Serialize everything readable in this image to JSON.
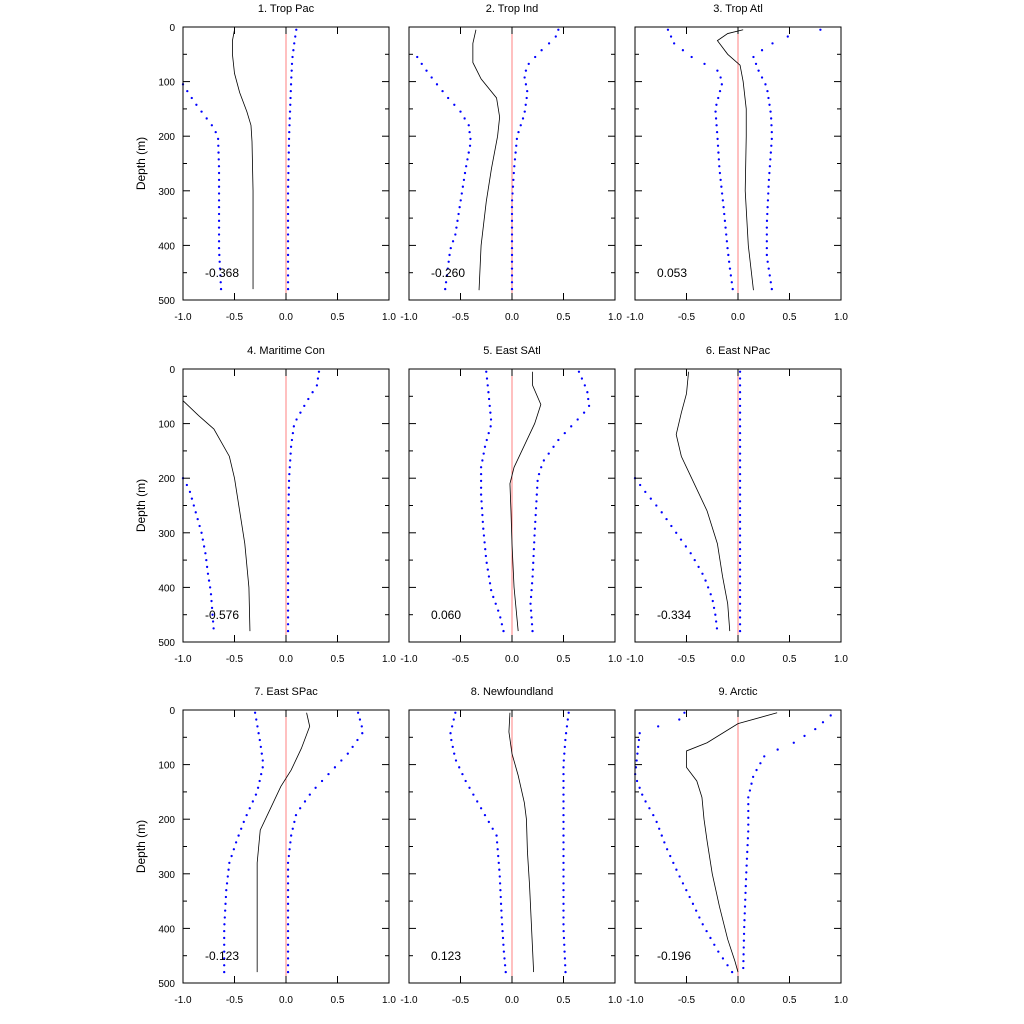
{
  "chart_data": {
    "type": "line",
    "layout": "3x3 grid of vertical profile panels",
    "ylabel": "Depth (m)",
    "xlim": [
      -1.0,
      1.0
    ],
    "ylim": [
      0,
      500
    ],
    "y_inverted": true,
    "xticks": [
      "-1.0",
      "-0.5",
      "0.0",
      "0.5",
      "1.0"
    ],
    "yticks": [
      "0",
      "100",
      "200",
      "300",
      "400",
      "500"
    ],
    "series_styles": {
      "mean": {
        "style": "solid",
        "color": "#000000"
      },
      "lower_bound": {
        "style": "dotted",
        "color": "#0000ff"
      },
      "upper_bound": {
        "style": "dotted",
        "color": "#0000ff"
      },
      "zero_line": {
        "style": "solid",
        "color": "#ff8080"
      }
    },
    "panels": [
      {
        "title": "1. Trop Pac",
        "label": "-0.368",
        "mean": [
          [
            -0.5,
            5
          ],
          [
            -0.52,
            25
          ],
          [
            -0.52,
            50
          ],
          [
            -0.5,
            85
          ],
          [
            -0.45,
            120
          ],
          [
            -0.38,
            155
          ],
          [
            -0.34,
            180
          ],
          [
            -0.33,
            210
          ],
          [
            -0.32,
            300
          ],
          [
            -0.32,
            400
          ],
          [
            -0.32,
            480
          ]
        ],
        "lower": [
          [
            -1.0,
            105
          ],
          [
            -0.95,
            120
          ],
          [
            -0.88,
            140
          ],
          [
            -0.8,
            160
          ],
          [
            -0.72,
            180
          ],
          [
            -0.66,
            200
          ],
          [
            -0.65,
            260
          ],
          [
            -0.65,
            300
          ],
          [
            -0.65,
            350
          ],
          [
            -0.65,
            408
          ],
          [
            -0.63,
            482
          ]
        ],
        "upper": [
          [
            0.1,
            5
          ],
          [
            0.08,
            30
          ],
          [
            0.06,
            60
          ],
          [
            0.05,
            100
          ],
          [
            0.04,
            150
          ],
          [
            0.03,
            200
          ],
          [
            0.02,
            300
          ],
          [
            0.02,
            400
          ],
          [
            0.02,
            482
          ]
        ]
      },
      {
        "title": "2. Trop Ind",
        "label": "-0.260",
        "mean": [
          [
            -0.35,
            5
          ],
          [
            -0.38,
            30
          ],
          [
            -0.38,
            65
          ],
          [
            -0.3,
            95
          ],
          [
            -0.15,
            130
          ],
          [
            -0.12,
            165
          ],
          [
            -0.14,
            200
          ],
          [
            -0.2,
            260
          ],
          [
            -0.25,
            320
          ],
          [
            -0.3,
            400
          ],
          [
            -0.32,
            482
          ]
        ],
        "lower": [
          [
            -0.92,
            55
          ],
          [
            -0.85,
            75
          ],
          [
            -0.75,
            100
          ],
          [
            -0.62,
            130
          ],
          [
            -0.5,
            155
          ],
          [
            -0.42,
            180
          ],
          [
            -0.4,
            210
          ],
          [
            -0.45,
            260
          ],
          [
            -0.5,
            320
          ],
          [
            -0.55,
            380
          ],
          [
            -0.6,
            408
          ],
          [
            -0.65,
            482
          ]
        ],
        "upper": [
          [
            0.45,
            5
          ],
          [
            0.42,
            20
          ],
          [
            0.3,
            40
          ],
          [
            0.15,
            70
          ],
          [
            0.12,
            90
          ],
          [
            0.15,
            120
          ],
          [
            0.12,
            160
          ],
          [
            0.05,
            200
          ],
          [
            0.02,
            260
          ],
          [
            0.0,
            320
          ],
          [
            0.0,
            482
          ]
        ]
      },
      {
        "title": "3. Trop Atl",
        "label": "0.053",
        "mean": [
          [
            0.05,
            5
          ],
          [
            -0.1,
            12
          ],
          [
            -0.2,
            25
          ],
          [
            -0.1,
            50
          ],
          [
            0.02,
            70
          ],
          [
            0.05,
            100
          ],
          [
            0.08,
            150
          ],
          [
            0.08,
            200
          ],
          [
            0.07,
            300
          ],
          [
            0.1,
            400
          ],
          [
            0.15,
            482
          ]
        ],
        "lower": [
          [
            -0.68,
            5
          ],
          [
            -0.62,
            30
          ],
          [
            -0.45,
            55
          ],
          [
            -0.2,
            80
          ],
          [
            -0.15,
            100
          ],
          [
            -0.22,
            150
          ],
          [
            -0.2,
            200
          ],
          [
            -0.18,
            260
          ],
          [
            -0.14,
            330
          ],
          [
            -0.1,
            408
          ],
          [
            -0.08,
            440
          ],
          [
            -0.05,
            482
          ]
        ],
        "upper": [
          [
            0.8,
            5
          ],
          [
            0.42,
            20
          ],
          [
            0.25,
            40
          ],
          [
            0.15,
            55
          ],
          [
            0.2,
            80
          ],
          [
            0.28,
            110
          ],
          [
            0.32,
            160
          ],
          [
            0.33,
            200
          ],
          [
            0.3,
            280
          ],
          [
            0.28,
            360
          ],
          [
            0.28,
            420
          ],
          [
            0.33,
            482
          ]
        ]
      },
      {
        "title": "4. Maritime Con",
        "label": "-0.576",
        "mean": [
          [
            -1.0,
            58
          ],
          [
            -0.85,
            85
          ],
          [
            -0.7,
            110
          ],
          [
            -0.55,
            160
          ],
          [
            -0.5,
            200
          ],
          [
            -0.45,
            260
          ],
          [
            -0.4,
            320
          ],
          [
            -0.36,
            400
          ],
          [
            -0.35,
            480
          ]
        ],
        "lower": [
          [
            -1.0,
            200
          ],
          [
            -0.94,
            220
          ],
          [
            -0.88,
            260
          ],
          [
            -0.82,
            300
          ],
          [
            -0.78,
            340
          ],
          [
            -0.76,
            372
          ],
          [
            -0.73,
            408
          ],
          [
            -0.7,
            482
          ]
        ],
        "upper": [
          [
            0.32,
            5
          ],
          [
            0.3,
            30
          ],
          [
            0.2,
            60
          ],
          [
            0.08,
            100
          ],
          [
            0.05,
            140
          ],
          [
            0.03,
            200
          ],
          [
            0.02,
            300
          ],
          [
            0.02,
            400
          ],
          [
            0.02,
            482
          ]
        ]
      },
      {
        "title": "5. East SAtl",
        "label": "0.060",
        "mean": [
          [
            0.2,
            5
          ],
          [
            0.2,
            30
          ],
          [
            0.28,
            65
          ],
          [
            0.22,
            100
          ],
          [
            0.12,
            140
          ],
          [
            0.02,
            180
          ],
          [
            -0.02,
            210
          ],
          [
            -0.01,
            260
          ],
          [
            0.0,
            320
          ],
          [
            0.02,
            400
          ],
          [
            0.06,
            480
          ]
        ],
        "lower": [
          [
            -0.25,
            5
          ],
          [
            -0.23,
            40
          ],
          [
            -0.2,
            100
          ],
          [
            -0.26,
            140
          ],
          [
            -0.3,
            180
          ],
          [
            -0.3,
            230
          ],
          [
            -0.28,
            290
          ],
          [
            -0.25,
            350
          ],
          [
            -0.2,
            408
          ],
          [
            -0.12,
            450
          ],
          [
            -0.08,
            482
          ]
        ],
        "upper": [
          [
            0.65,
            5
          ],
          [
            0.73,
            40
          ],
          [
            0.75,
            70
          ],
          [
            0.6,
            100
          ],
          [
            0.45,
            130
          ],
          [
            0.3,
            170
          ],
          [
            0.25,
            200
          ],
          [
            0.22,
            300
          ],
          [
            0.2,
            380
          ],
          [
            0.18,
            430
          ],
          [
            0.2,
            482
          ]
        ]
      },
      {
        "title": "6. East NPac",
        "label": "-0.334",
        "mean": [
          [
            -0.48,
            5
          ],
          [
            -0.5,
            45
          ],
          [
            -0.55,
            80
          ],
          [
            -0.6,
            120
          ],
          [
            -0.55,
            160
          ],
          [
            -0.45,
            200
          ],
          [
            -0.3,
            260
          ],
          [
            -0.2,
            320
          ],
          [
            -0.15,
            380
          ],
          [
            -0.1,
            430
          ],
          [
            -0.08,
            480
          ]
        ],
        "lower": [
          [
            -1.0,
            200
          ],
          [
            -0.9,
            225
          ],
          [
            -0.75,
            260
          ],
          [
            -0.6,
            300
          ],
          [
            -0.45,
            340
          ],
          [
            -0.33,
            380
          ],
          [
            -0.25,
            420
          ],
          [
            -0.22,
            450
          ],
          [
            -0.2,
            482
          ]
        ],
        "upper": [
          [
            0.02,
            5
          ],
          [
            0.02,
            60
          ],
          [
            0.02,
            120
          ],
          [
            0.02,
            200
          ],
          [
            0.02,
            300
          ],
          [
            0.02,
            400
          ],
          [
            0.02,
            482
          ]
        ]
      },
      {
        "title": "7. East SPac",
        "label": "-0.123",
        "mean": [
          [
            0.2,
            5
          ],
          [
            0.23,
            30
          ],
          [
            0.15,
            70
          ],
          [
            0.05,
            110
          ],
          [
            -0.05,
            140
          ],
          [
            -0.15,
            180
          ],
          [
            -0.25,
            220
          ],
          [
            -0.28,
            280
          ],
          [
            -0.28,
            350
          ],
          [
            -0.28,
            420
          ],
          [
            -0.28,
            480
          ]
        ],
        "lower": [
          [
            -0.3,
            5
          ],
          [
            -0.25,
            60
          ],
          [
            -0.22,
            100
          ],
          [
            -0.28,
            150
          ],
          [
            -0.4,
            200
          ],
          [
            -0.48,
            240
          ],
          [
            -0.55,
            280
          ],
          [
            -0.58,
            330
          ],
          [
            -0.6,
            400
          ],
          [
            -0.6,
            482
          ]
        ],
        "upper": [
          [
            0.7,
            5
          ],
          [
            0.75,
            40
          ],
          [
            0.6,
            80
          ],
          [
            0.45,
            110
          ],
          [
            0.25,
            150
          ],
          [
            0.1,
            190
          ],
          [
            0.05,
            230
          ],
          [
            0.02,
            280
          ],
          [
            0.02,
            350
          ],
          [
            0.02,
            420
          ],
          [
            0.02,
            482
          ]
        ]
      },
      {
        "title": "8. Newfoundland",
        "label": "0.123",
        "mean": [
          [
            -0.02,
            5
          ],
          [
            -0.03,
            40
          ],
          [
            0.0,
            80
          ],
          [
            0.06,
            120
          ],
          [
            0.12,
            170
          ],
          [
            0.14,
            200
          ],
          [
            0.15,
            260
          ],
          [
            0.17,
            320
          ],
          [
            0.19,
            400
          ],
          [
            0.21,
            480
          ]
        ],
        "lower": [
          [
            -0.55,
            5
          ],
          [
            -0.6,
            45
          ],
          [
            -0.55,
            90
          ],
          [
            -0.45,
            130
          ],
          [
            -0.3,
            180
          ],
          [
            -0.15,
            230
          ],
          [
            -0.12,
            300
          ],
          [
            -0.1,
            380
          ],
          [
            -0.08,
            440
          ],
          [
            -0.06,
            482
          ]
        ],
        "upper": [
          [
            0.55,
            5
          ],
          [
            0.52,
            50
          ],
          [
            0.5,
            100
          ],
          [
            0.5,
            200
          ],
          [
            0.5,
            300
          ],
          [
            0.5,
            400
          ],
          [
            0.52,
            482
          ]
        ]
      },
      {
        "title": "9. Arctic",
        "label": "-0.196",
        "mean": [
          [
            0.38,
            5
          ],
          [
            0.0,
            25
          ],
          [
            -0.3,
            60
          ],
          [
            -0.5,
            75
          ],
          [
            -0.5,
            105
          ],
          [
            -0.4,
            130
          ],
          [
            -0.35,
            160
          ],
          [
            -0.33,
            200
          ],
          [
            -0.3,
            240
          ],
          [
            -0.25,
            300
          ],
          [
            -0.18,
            360
          ],
          [
            -0.1,
            420
          ],
          [
            -0.03,
            460
          ],
          [
            0.0,
            480
          ]
        ],
        "lower": [
          [
            -0.52,
            5
          ],
          [
            -0.6,
            25
          ],
          [
            -0.95,
            35
          ],
          [
            -1.0,
            120
          ],
          [
            -0.92,
            160
          ],
          [
            -0.8,
            200
          ],
          [
            -0.7,
            250
          ],
          [
            -0.58,
            300
          ],
          [
            -0.45,
            350
          ],
          [
            -0.35,
            390
          ],
          [
            -0.2,
            440
          ],
          [
            -0.05,
            482
          ]
        ],
        "upper": [
          [
            0.9,
            10
          ],
          [
            0.75,
            35
          ],
          [
            0.5,
            65
          ],
          [
            0.27,
            80
          ],
          [
            0.15,
            120
          ],
          [
            0.1,
            160
          ],
          [
            0.1,
            220
          ],
          [
            0.08,
            300
          ],
          [
            0.06,
            400
          ],
          [
            0.05,
            482
          ]
        ]
      }
    ]
  }
}
